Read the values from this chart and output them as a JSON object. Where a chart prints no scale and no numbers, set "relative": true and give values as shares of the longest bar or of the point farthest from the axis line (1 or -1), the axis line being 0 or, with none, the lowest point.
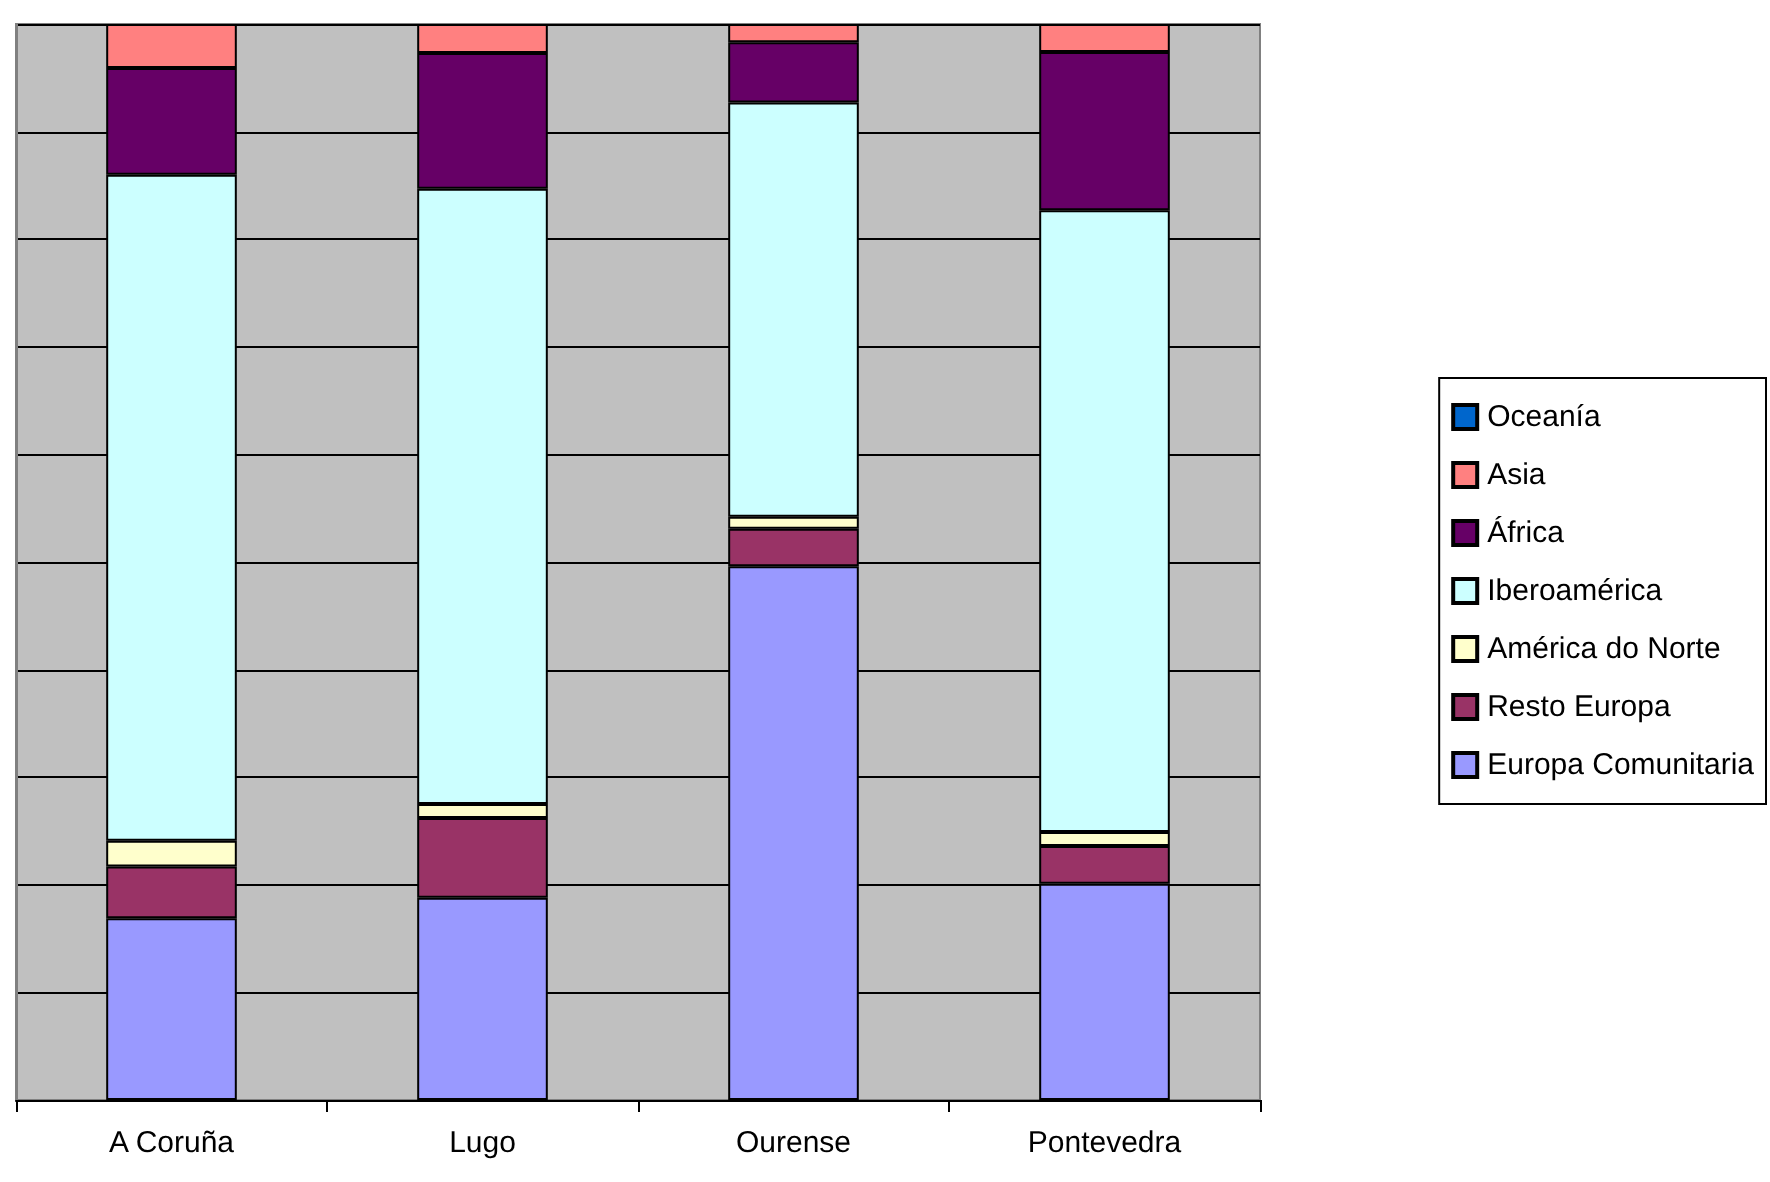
{
  "chart_data": {
    "type": "bar",
    "stacked": true,
    "relative": true,
    "grid": "y",
    "legend": "right",
    "categories": [
      "A Coruña",
      "Lugo",
      "Ourense",
      "Pontevedra"
    ],
    "series": [
      {
        "name": "Europa Comunitaria",
        "color": "#9999ff",
        "values": [
          0.169,
          0.188,
          0.496,
          0.201
        ]
      },
      {
        "name": "Resto Europa",
        "color": "#993366",
        "values": [
          0.048,
          0.074,
          0.035,
          0.035
        ]
      },
      {
        "name": "América do Norte",
        "color": "#ffffcc",
        "values": [
          0.024,
          0.013,
          0.011,
          0.013
        ]
      },
      {
        "name": "Iberoamérica",
        "color": "#ccffff",
        "values": [
          0.619,
          0.572,
          0.385,
          0.578
        ]
      },
      {
        "name": "África",
        "color": "#660066",
        "values": [
          0.099,
          0.126,
          0.056,
          0.147
        ]
      },
      {
        "name": "Asia",
        "color": "#ff8080",
        "values": [
          0.041,
          0.027,
          0.017,
          0.026
        ]
      },
      {
        "name": "Oceanía",
        "color": "#0066cc",
        "values": [
          0,
          0,
          0,
          0
        ]
      }
    ]
  }
}
